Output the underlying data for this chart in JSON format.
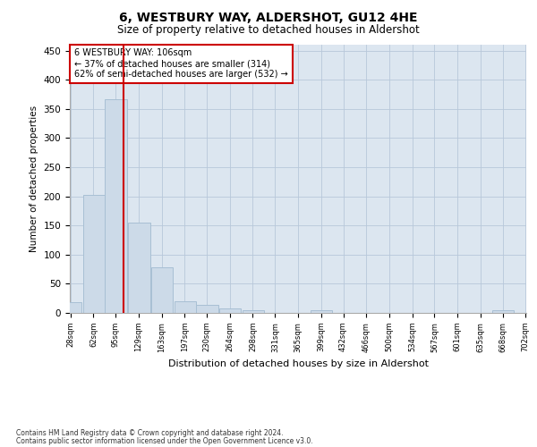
{
  "title": "6, WESTBURY WAY, ALDERSHOT, GU12 4HE",
  "subtitle": "Size of property relative to detached houses in Aldershot",
  "xlabel": "Distribution of detached houses by size in Aldershot",
  "ylabel": "Number of detached properties",
  "footnote1": "Contains HM Land Registry data © Crown copyright and database right 2024.",
  "footnote2": "Contains public sector information licensed under the Open Government Licence v3.0.",
  "annotation_line1": "6 WESTBURY WAY: 106sqm",
  "annotation_line2": "← 37% of detached houses are smaller (314)",
  "annotation_line3": "62% of semi-detached houses are larger (532) →",
  "bar_color": "#ccdae8",
  "bar_edge_color": "#a8c0d4",
  "vline_color": "#cc0000",
  "annotation_box_edgecolor": "#cc0000",
  "plot_bg_color": "#dce6f0",
  "background_color": "#ffffff",
  "grid_color": "#b8c8da",
  "bins": [
    28,
    62,
    95,
    129,
    163,
    197,
    230,
    264,
    298,
    331,
    365,
    399,
    432,
    466,
    500,
    534,
    567,
    601,
    635,
    668,
    702
  ],
  "counts": [
    18,
    202,
    367,
    155,
    78,
    20,
    14,
    8,
    5,
    0,
    0,
    4,
    0,
    0,
    0,
    0,
    0,
    0,
    0,
    5
  ],
  "property_size": 106,
  "ylim": [
    0,
    460
  ],
  "yticks": [
    0,
    50,
    100,
    150,
    200,
    250,
    300,
    350,
    400,
    450
  ]
}
